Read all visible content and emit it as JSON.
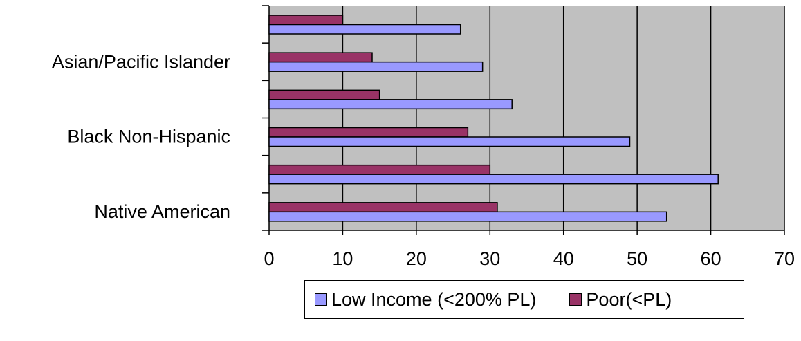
{
  "chart_data": {
    "type": "bar",
    "orientation": "horizontal",
    "categories": [
      "",
      "Asian/Pacific Islander",
      "",
      "Black Non-Hispanic",
      "",
      "Native American"
    ],
    "series": [
      {
        "name": "Low Income (<200% PL)",
        "values": [
          26,
          29,
          33,
          49,
          61,
          54
        ],
        "color": "#9999ff"
      },
      {
        "name": "Poor(<PL)",
        "values": [
          10,
          14,
          15,
          27,
          30,
          31
        ],
        "color": "#993366"
      }
    ],
    "xticks": [
      "0",
      "10",
      "20",
      "30",
      "40",
      "50",
      "60",
      "70"
    ],
    "xlim": [
      0,
      70
    ],
    "plot_background": "#c0c0c0",
    "grid": true,
    "legend_position": "bottom"
  }
}
